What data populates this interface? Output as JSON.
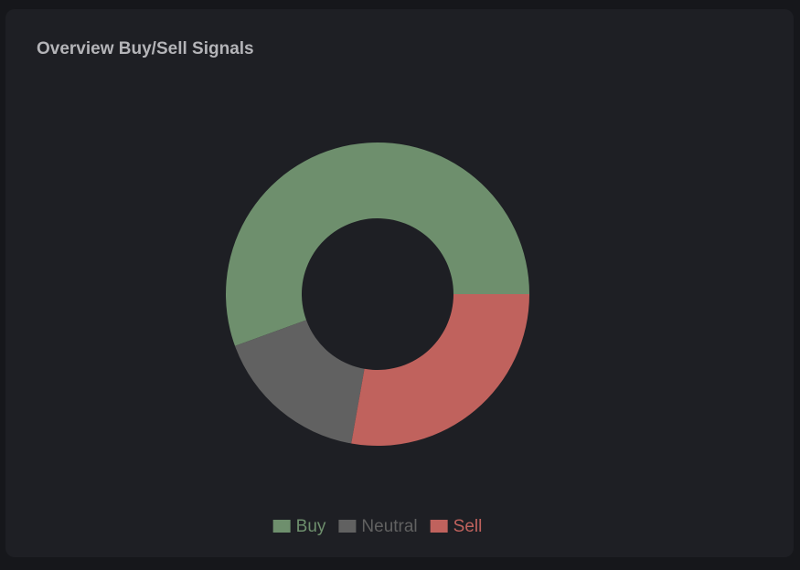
{
  "chart_data": {
    "type": "donut",
    "title": "Overview Buy/Sell Signals",
    "categories": [
      "Buy",
      "Neutral",
      "Sell"
    ],
    "values": [
      10,
      3,
      5
    ],
    "colors": [
      "#6e8f6d",
      "#616161",
      "#c0625d"
    ],
    "legend": "bottom"
  }
}
